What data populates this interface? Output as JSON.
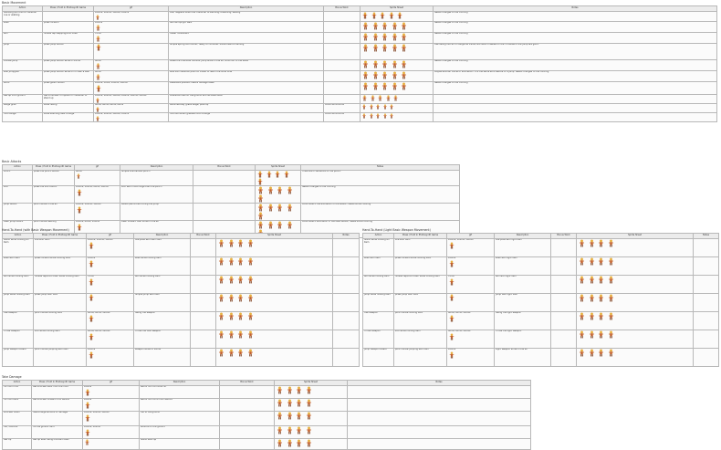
{
  "sections": [
    {
      "title": "Basic Movement",
      "headers": [
        "Action",
        "Press / Hold In Photosynth Game",
        "gif",
        "Description",
        "Bonus Work",
        "Sprite Sheet",
        "Notes"
      ],
      "rows": [
        [
          "Standing still until a character cue or walking",
          "",
          "100ms, 100ms, 100ms, 100ms",
          "Idle, happens when the character is standing, breathing, waiting",
          "",
          "",
          "Needs changes to the coloring"
        ],
        [
          "Walk",
          "press forward",
          "100ms",
          "Normal upright walk",
          "",
          "",
          "Needs changes to the coloring"
        ],
        [
          "Run",
          "double tap stepping/hold down",
          "70ms",
          "Faster movement",
          "",
          "",
          "Needs changes to the coloring"
        ],
        [
          "Jump",
          "press jump button",
          "",
          "Simple spring into the air, ready to continue. Should lead to landing",
          "",
          "",
          "Use falling into air of hangtime frame; Not sure if needed or the 3 frames of the jump are good."
        ],
        [
          "Double Jump",
          "press jump button while in the air",
          "80ms",
          "Gives the character another jump while in the air, arms out to the sides",
          "",
          "",
          "Needs changes to the coloring"
        ],
        [
          "Wall jump/Jam",
          "press jump button while on or near a wall",
          "90ms",
          "Lets the character push off a wall to reach the other side",
          "",
          "",
          "Maybe another frame or animation? It is the same as a feature of a jump. Needs changes to the coloring"
        ],
        [
          "Block",
          "press guard button",
          "100ms, 50ms, 100ms, 100ms",
          "Defensive posture, lowers damage taken",
          "",
          "",
          "Needs changes to the coloring"
        ],
        [
          "Get up from ground",
          "Get a number of inputs for character to stand up",
          "100ms, 100ms, 100ms, 100ms, 100ms, 100ms",
          "Character falls on the ground and recovers after",
          "",
          "",
          ""
        ],
        [
          "Ledge grab",
          "while falling",
          "80ms, 80ms, 80ms, 80ms",
          "Automatically grabs ledge, pulls up",
          "Could be a bonus",
          "",
          ""
        ],
        [
          "Hold Ledge",
          "while standing near a ledge",
          "100ms, 100ms, 100ms, 100ms",
          "Hold still when grabbed onto a ledge",
          "Could be a bonus",
          "",
          ""
        ]
      ]
    },
    {
      "title": "Basic Attacks",
      "headers": [
        "Action",
        "Press / Hold In Photosynth Game",
        "gif",
        "Description",
        "Bonus Work",
        "Sprite Sheet",
        "Notes"
      ],
      "rows": [
        [
          "Punch",
          "press the punch button",
          "80ms",
          "Simple one-handed punch",
          "",
          "",
          "There are 2 variations of the punch"
        ],
        [
          "Kick",
          "press the kick button",
          "100ms, 100ms, 80ms, 100ms",
          "Kick with more range than the punch",
          "",
          "",
          "Needs changes to the coloring"
        ],
        [
          "Jump Attack",
          "punch while in the air",
          "100ms, 100ms, 100ms",
          "Attack performed during the jump",
          "",
          "",
          "Could attach the animation of the attack; needs some coloring"
        ],
        [
          "Dash Jump Attack",
          "punch while dashing",
          "100ms, 80ms, 100ms",
          "Dash forward then strike in the air",
          "",
          "",
          "Could attach animation of the dash attack; needs some coloring"
        ]
      ]
    },
    {
      "title": "Hand-To-Hand (with Basic Weapon Movement)",
      "headers": [
        "Action",
        "Press / Hold In Photosynth Game",
        "gif",
        "Description",
        "Bonus Work",
        "Sprite Sheet",
        "Notes"
      ],
      "rows": [
        [
          "Stand while holding an item",
          "idle with item",
          "100ms, 100ms, 100ms",
          "Idle pose with item held",
          "",
          "",
          ""
        ],
        [
          "Walk with item",
          "press forward while holding item",
          "100ms",
          "Walk while holding item",
          "",
          "",
          ""
        ],
        [
          "Run while holding item",
          "double tap/hold down while holding item",
          "70ms",
          "Run while holding item",
          "",
          "",
          ""
        ],
        [
          "Jump while holding item",
          "press jump with item",
          "",
          "Simple jump with item",
          "",
          "",
          ""
        ],
        [
          "Use Weapon",
          "punch while holding item",
          "80ms, 80ms, 100ms",
          "Swing the weapon",
          "",
          "",
          ""
        ],
        [
          "Throw Weapon",
          "kick while holding item",
          "80ms, 80ms, 100ms",
          "Throw the held weapon",
          "",
          "",
          ""
        ],
        [
          "Jump Weapon Attack",
          "punch while jumping with item",
          "100ms",
          "Weapon strike in the air",
          "",
          "",
          ""
        ]
      ]
    },
    {
      "title": "Hand-To-Hand (Light Basic Weapon Movement)",
      "headers": [
        "Action",
        "Press / Hold In Photosynth Game",
        "gif",
        "Description",
        "Bonus Work",
        "Sprite Sheet",
        "Notes"
      ],
      "rows": [
        [
          "Stand while holding an item",
          "idle with item",
          "100ms, 100ms, 100ms",
          "Idle pose with light item",
          "",
          "",
          ""
        ],
        [
          "Walk with item",
          "press forward while holding item",
          "100ms",
          "Walk with light item",
          "",
          "",
          ""
        ],
        [
          "Run while holding item",
          "double tap/hold down while holding item",
          "70ms",
          "Run with light item",
          "",
          "",
          ""
        ],
        [
          "Jump while holding item",
          "press jump with item",
          "",
          "Jump with light item",
          "",
          "",
          ""
        ],
        [
          "Use Weapon",
          "punch while holding item",
          "80ms, 80ms, 100ms",
          "Swing the light weapon",
          "",
          "",
          ""
        ],
        [
          "Throw Weapon",
          "kick while holding item",
          "80ms, 80ms, 100ms",
          "Throw the light weapon",
          "",
          "",
          ""
        ],
        [
          "Jump Weapon Attack",
          "punch while jumping with item",
          "100ms",
          "Light weapon strike in the air",
          "",
          "",
          ""
        ]
      ]
    },
    {
      "title": "Take Damage",
      "headers": [
        "Action",
        "Press / Hold In Photosynth Game",
        "gif",
        "Description",
        "Bonus Work",
        "Sprite Sheet",
        "Notes"
      ],
      "rows": [
        [
          "Hit from front",
          "Get knocked back from the front",
          "100ms",
          "Recoil from a frontal hit",
          "",
          "",
          ""
        ],
        [
          "Hit from back",
          "Get knocked forward from behind",
          "100ms",
          "Recoil from a hit from behind",
          "",
          "",
          ""
        ],
        [
          "Knocked down",
          "Take a large amount of damage",
          "100ms, 100ms, 100ms",
          "Fall to the ground",
          "",
          "",
          ""
        ],
        [
          "Fall / Bounce",
          "Hit the ground hard",
          "100ms, 100ms",
          "Bounce off the ground",
          "",
          "",
          ""
        ],
        [
          "Get Up",
          "Get up after being knocked down",
          "",
          "Stand back up",
          "",
          "",
          ""
        ]
      ]
    }
  ],
  "sprite_color": "#c4622d",
  "accent_color": "#e8b040"
}
